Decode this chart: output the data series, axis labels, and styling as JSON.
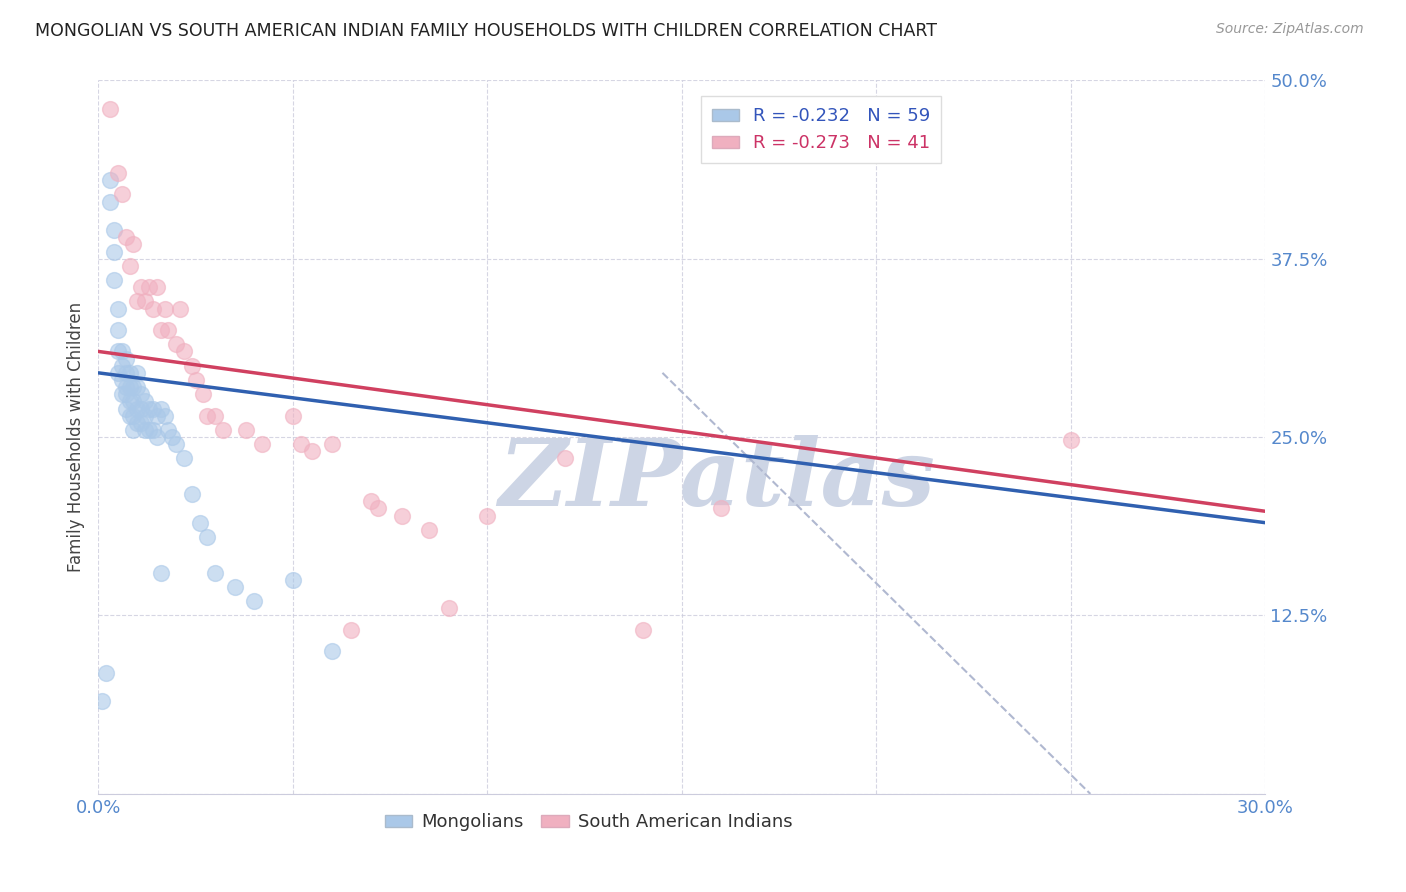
{
  "title": "MONGOLIAN VS SOUTH AMERICAN INDIAN FAMILY HOUSEHOLDS WITH CHILDREN CORRELATION CHART",
  "source": "Source: ZipAtlas.com",
  "ylabel": "Family Households with Children",
  "x_min": 0.0,
  "x_max": 0.3,
  "y_min": 0.0,
  "y_max": 0.5,
  "x_ticks": [
    0.0,
    0.05,
    0.1,
    0.15,
    0.2,
    0.25,
    0.3
  ],
  "x_tick_labels": [
    "0.0%",
    "",
    "",
    "",
    "",
    "",
    "30.0%"
  ],
  "y_ticks": [
    0.0,
    0.125,
    0.25,
    0.375,
    0.5
  ],
  "y_tick_labels": [
    "",
    "12.5%",
    "25.0%",
    "37.5%",
    "50.0%"
  ],
  "legend_r_blue": "R = -0.232",
  "legend_n_blue": "N = 59",
  "legend_r_pink": "R = -0.273",
  "legend_n_pink": "N = 41",
  "legend_label_blue": "Mongolians",
  "legend_label_pink": "South American Indians",
  "blue_color": "#aac8e8",
  "pink_color": "#f0b0c0",
  "blue_line_color": "#3060b0",
  "pink_line_color": "#d04060",
  "dashed_line_color": "#b0b8d0",
  "watermark_text": "ZIPatlas",
  "watermark_color": "#cdd5e5",
  "background_color": "#ffffff",
  "tick_color": "#5588cc",
  "legend_text_color_blue": "#3355bb",
  "legend_text_color_pink": "#cc3366",
  "mongolian_x": [
    0.001,
    0.002,
    0.003,
    0.003,
    0.004,
    0.004,
    0.004,
    0.005,
    0.005,
    0.005,
    0.005,
    0.006,
    0.006,
    0.006,
    0.006,
    0.007,
    0.007,
    0.007,
    0.007,
    0.007,
    0.008,
    0.008,
    0.008,
    0.008,
    0.009,
    0.009,
    0.009,
    0.009,
    0.01,
    0.01,
    0.01,
    0.01,
    0.011,
    0.011,
    0.011,
    0.012,
    0.012,
    0.012,
    0.013,
    0.013,
    0.014,
    0.014,
    0.015,
    0.015,
    0.016,
    0.016,
    0.017,
    0.018,
    0.019,
    0.02,
    0.022,
    0.024,
    0.026,
    0.028,
    0.03,
    0.035,
    0.04,
    0.05,
    0.06
  ],
  "mongolian_y": [
    0.065,
    0.085,
    0.43,
    0.415,
    0.395,
    0.38,
    0.36,
    0.34,
    0.325,
    0.31,
    0.295,
    0.31,
    0.3,
    0.29,
    0.28,
    0.305,
    0.295,
    0.285,
    0.28,
    0.27,
    0.295,
    0.285,
    0.275,
    0.265,
    0.285,
    0.275,
    0.265,
    0.255,
    0.295,
    0.285,
    0.27,
    0.26,
    0.28,
    0.27,
    0.26,
    0.275,
    0.265,
    0.255,
    0.27,
    0.255,
    0.27,
    0.255,
    0.265,
    0.25,
    0.27,
    0.155,
    0.265,
    0.255,
    0.25,
    0.245,
    0.235,
    0.21,
    0.19,
    0.18,
    0.155,
    0.145,
    0.135,
    0.15,
    0.1
  ],
  "south_am_x": [
    0.003,
    0.005,
    0.006,
    0.007,
    0.008,
    0.009,
    0.01,
    0.011,
    0.012,
    0.013,
    0.014,
    0.015,
    0.016,
    0.017,
    0.018,
    0.02,
    0.021,
    0.022,
    0.024,
    0.025,
    0.027,
    0.028,
    0.03,
    0.032,
    0.038,
    0.042,
    0.05,
    0.052,
    0.055,
    0.06,
    0.065,
    0.07,
    0.072,
    0.078,
    0.085,
    0.09,
    0.1,
    0.12,
    0.14,
    0.16,
    0.25
  ],
  "south_am_y": [
    0.48,
    0.435,
    0.42,
    0.39,
    0.37,
    0.385,
    0.345,
    0.355,
    0.345,
    0.355,
    0.34,
    0.355,
    0.325,
    0.34,
    0.325,
    0.315,
    0.34,
    0.31,
    0.3,
    0.29,
    0.28,
    0.265,
    0.265,
    0.255,
    0.255,
    0.245,
    0.265,
    0.245,
    0.24,
    0.245,
    0.115,
    0.205,
    0.2,
    0.195,
    0.185,
    0.13,
    0.195,
    0.235,
    0.115,
    0.2,
    0.248
  ],
  "blue_trendline_x": [
    0.0,
    0.3
  ],
  "blue_trendline_y": [
    0.295,
    0.19
  ],
  "pink_trendline_x": [
    0.0,
    0.3
  ],
  "pink_trendline_y": [
    0.31,
    0.198
  ],
  "dashed_line_x": [
    0.145,
    0.255
  ],
  "dashed_line_y": [
    0.295,
    0.0
  ]
}
